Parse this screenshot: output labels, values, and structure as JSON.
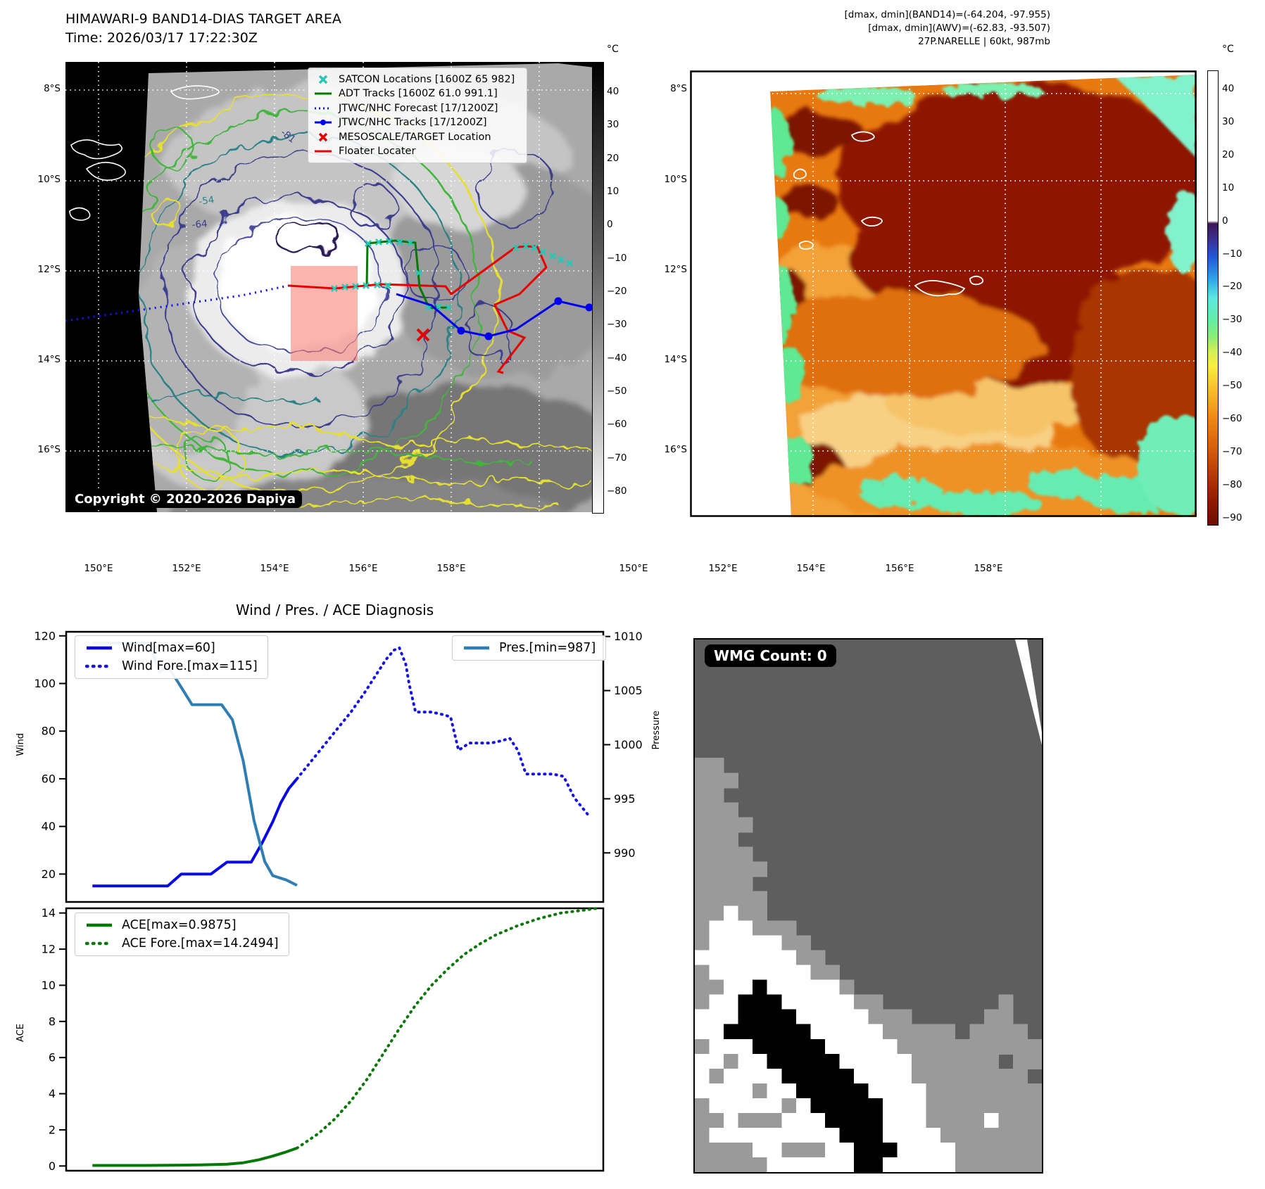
{
  "band14_panel": {
    "title": "HIMAWARI-9 BAND14-DIAS TARGET AREA",
    "time_label": "Time: 2026/03/17 17:22:30Z",
    "copyright": "Copyright © 2020-2026 Dapiya",
    "legend": {
      "items": [
        {
          "symbol": "satcon-x-marker",
          "label": "SATCON Locations [1600Z 65 982]"
        },
        {
          "symbol": "adt-track-line",
          "label": "ADT Tracks [1600Z 61.0 991.1]"
        },
        {
          "symbol": "forecast-dotted-line",
          "label": "JTWC/NHC Forecast [17/1200Z]"
        },
        {
          "symbol": "track-line-with-dot",
          "label": "JTWC/NHC Tracks [17/1200Z]"
        },
        {
          "symbol": "mesoscale-x-marker",
          "label": "MESOSCALE/TARGET Location"
        },
        {
          "symbol": "floater-line",
          "label": "Floater Locater"
        }
      ]
    },
    "contour_labels": [
      "-54",
      "-64",
      "-81"
    ],
    "x_ticks": [
      "150°E",
      "152°E",
      "154°E",
      "156°E",
      "158°E"
    ],
    "y_ticks": [
      "8°S",
      "10°S",
      "12°S",
      "14°S",
      "16°S"
    ],
    "colorbar": {
      "unit": "°C",
      "ticks": [
        "40",
        "30",
        "20",
        "10",
        "0",
        "−10",
        "−20",
        "−30",
        "−40",
        "−50",
        "−60",
        "−70",
        "−80"
      ]
    }
  },
  "awv_panel": {
    "header_lines": [
      "[dmax, dmin](BAND14)=(-64.204, -97.955)",
      "[dmax, dmin](AWV)=(-62.83, -93.507)",
      "27P.NARELLE | 60kt, 987mb"
    ],
    "x_ticks": [
      "150°E",
      "152°E",
      "154°E",
      "156°E",
      "158°E"
    ],
    "y_ticks": [
      "8°S",
      "10°S",
      "12°S",
      "14°S",
      "16°S"
    ],
    "colorbar": {
      "unit": "°C",
      "ticks": [
        "40",
        "30",
        "20",
        "10",
        "0",
        "−10",
        "−20",
        "−30",
        "−40",
        "−50",
        "−60",
        "−70",
        "−80",
        "−90"
      ]
    }
  },
  "diagnosis": {
    "title": "Wind / Pres. / ACE Diagnosis",
    "wind_axis_label": "Wind",
    "pressure_axis_label": "Pressure",
    "ace_axis_label": "ACE"
  },
  "wmg_panel": {
    "count_label": "WMG Count: 0",
    "palette": {
      "d": "#5e5e5e",
      "g": "#9a9a9a",
      "w": "#ffffff",
      "b": "#000000"
    },
    "grid_rows": [
      "dddddddddddddddddddddddd",
      "dddddddddddddddddddddddd",
      "dddddddddddddddddddddddd",
      "dddddddddddddddddddddddd",
      "dddddddddddddddddddddddd",
      "dddddddddddddddddddddddd",
      "dddddddddddddddddddddddd",
      "dddddddddddddddddddddddd",
      "ggdddddddddddddddddddddd",
      "gggddddddddddddddddddddd",
      "ggdddddddddddddddddddddd",
      "gggddddddddddddddddddddd",
      "ggggdddddddddddddddddddd",
      "gggddddddddddddddddddddd",
      "ggggdddddddddddddddddddd",
      "gggggddddddddddddddddddd",
      "ggggdddddddddddddddddddd",
      "gggggddddddddddddddddddd",
      "ggwggddddddddddddddddddd",
      "gwwwgggddddddddddddddddd",
      "gwwwwwggdddddddddddddddd",
      "wwwwwwwggddddddddddddddd",
      "gwwwwwwwggdddddddddddddd",
      "ggwwbwwwwwgddddddddddddd",
      "gwwbbbwwwwwggddddddddgdd",
      "wwwbbbbwwwwwgggdddddggdd",
      "wwbbbbbbwwwwwgggggdggggd",
      "gwwwbbbbbwwwwwgggggggggg",
      "wwgwwbbbbbwwwwwggggggdgg",
      "wgwwwwbbbbbwwwwggggggggd",
      "wwwwgwwbbbbbwwwwgggggggg",
      "gwwwwwgwbbbbbwwwgggggggg",
      "ggwgggwwwbbbbwwwggggwggg",
      "gwwwwwwwwwbbbwwwwggggggg",
      "ggggwwgggwwbbbwwwwgggggg",
      "gggggwwwwwwbbwwwwwgggggg"
    ]
  },
  "chart_data": [
    {
      "id": "wind_pres",
      "type": "line",
      "title": "Wind / Pres. / ACE Diagnosis",
      "ylabel_left": "Wind",
      "ylabel_right": "Pressure",
      "ylim_left": [
        8,
        122
      ],
      "ylim_right": [
        985.4,
        1010.5
      ],
      "yticks_left": [
        20,
        40,
        60,
        80,
        100,
        120
      ],
      "yticks_right": [
        990,
        995,
        1000,
        1005,
        1010
      ],
      "xlim": [
        0,
        1
      ],
      "grid": false,
      "series": [
        {
          "name": "Wind[max=60]",
          "axis": "left",
          "style": "solid",
          "color": "#0808e8",
          "x": [
            0.05,
            0.19,
            0.215,
            0.25,
            0.27,
            0.3,
            0.33,
            0.345,
            0.365,
            0.385,
            0.4,
            0.415,
            0.43
          ],
          "y": [
            15,
            15,
            20,
            20,
            20,
            25,
            25,
            25,
            33,
            42,
            50,
            56,
            60
          ]
        },
        {
          "name": "Wind Fore.[max=115]",
          "axis": "left",
          "style": "dotted",
          "color": "#1414e8",
          "x": [
            0.43,
            0.455,
            0.48,
            0.505,
            0.53,
            0.555,
            0.575,
            0.595,
            0.61,
            0.62,
            0.632,
            0.638,
            0.65,
            0.68,
            0.7,
            0.715,
            0.73,
            0.75,
            0.77,
            0.79,
            0.81,
            0.825,
            0.84,
            0.855,
            0.88,
            0.905,
            0.925,
            0.945,
            0.97
          ],
          "y": [
            60,
            67,
            74,
            81,
            88,
            96,
            103,
            110,
            114,
            115,
            108,
            100,
            88,
            88,
            87,
            86,
            72,
            75,
            75,
            75,
            76,
            77,
            72,
            62,
            62,
            62,
            61,
            52,
            45
          ]
        },
        {
          "name": "Pres.[min=987]",
          "axis": "right",
          "style": "solid",
          "color": "#2e7eb3",
          "x": [
            0.05,
            0.12,
            0.155,
            0.175,
            0.19,
            0.21,
            0.235,
            0.29,
            0.31,
            0.33,
            0.35,
            0.37,
            0.385,
            0.41,
            0.43
          ],
          "y": [
            1009.4,
            1009.4,
            1009.4,
            1006.7,
            1007.2,
            1005.7,
            1003.7,
            1003.7,
            1002.3,
            998.5,
            993.0,
            989.2,
            987.9,
            987.5,
            987.0
          ]
        }
      ]
    },
    {
      "id": "ace",
      "type": "line",
      "ylabel_left": "ACE",
      "ylim_left": [
        -0.3,
        14.3
      ],
      "yticks_left": [
        0,
        2,
        4,
        6,
        8,
        10,
        12,
        14
      ],
      "xlim": [
        0,
        1
      ],
      "grid": false,
      "series": [
        {
          "name": "ACE[max=0.9875]",
          "axis": "left",
          "style": "solid",
          "color": "#067806",
          "x": [
            0.05,
            0.15,
            0.25,
            0.3,
            0.33,
            0.36,
            0.385,
            0.41,
            0.43
          ],
          "y": [
            0.03,
            0.03,
            0.06,
            0.1,
            0.18,
            0.35,
            0.55,
            0.78,
            0.99
          ]
        },
        {
          "name": "ACE Fore.[max=14.2494]",
          "axis": "left",
          "style": "dotted",
          "color": "#067806",
          "x": [
            0.43,
            0.47,
            0.5,
            0.53,
            0.56,
            0.59,
            0.62,
            0.65,
            0.68,
            0.71,
            0.74,
            0.77,
            0.8,
            0.84,
            0.88,
            0.92,
            0.96,
            0.985
          ],
          "y": [
            0.99,
            1.8,
            2.6,
            3.6,
            4.8,
            6.2,
            7.6,
            8.9,
            10.0,
            10.9,
            11.7,
            12.3,
            12.8,
            13.3,
            13.7,
            14.0,
            14.15,
            14.25
          ]
        }
      ]
    }
  ]
}
